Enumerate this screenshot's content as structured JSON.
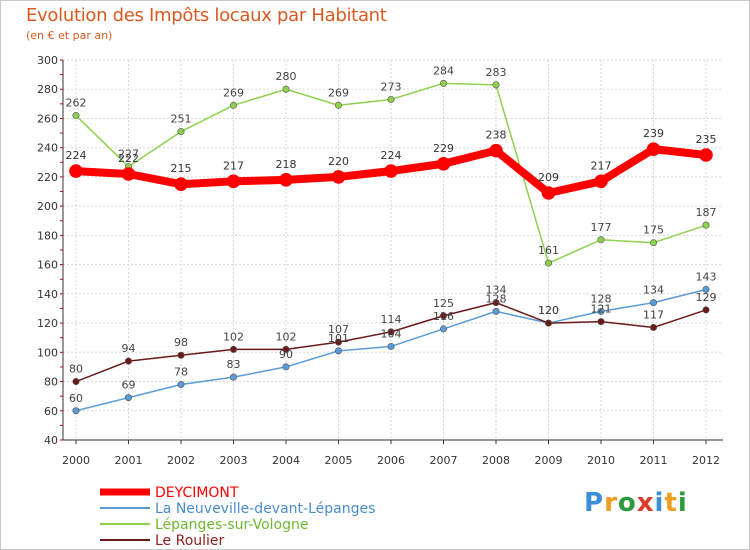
{
  "title": "Evolution des Impôts locaux par Habitant",
  "subtitle": "(en € et par an)",
  "logo": {
    "text": "Proxiti",
    "colors": [
      "#3a8fd6",
      "#f0a020",
      "#2a9a3a",
      "#e03a2a",
      "#3a8fd6",
      "#f0a020",
      "#2a9a3a"
    ]
  },
  "chart_data": {
    "type": "line",
    "x": [
      "2000",
      "2001",
      "2002",
      "2003",
      "2004",
      "2005",
      "2006",
      "2007",
      "2008",
      "2009",
      "2010",
      "2011",
      "2012"
    ],
    "ylim": [
      40,
      300
    ],
    "yticks": [
      40,
      60,
      80,
      100,
      120,
      140,
      160,
      180,
      200,
      220,
      240,
      260,
      280,
      300
    ],
    "grid": true,
    "legend_position": "bottom-left",
    "series": [
      {
        "name": "DEYCIMONT",
        "color": "#ff0000",
        "width": 8,
        "values": [
          224,
          222,
          215,
          217,
          218,
          220,
          224,
          229,
          238,
          209,
          217,
          239,
          235
        ]
      },
      {
        "name": "La Neuveville-devant-Lépanges",
        "color": "#5b9bd5",
        "width": 1.5,
        "values": [
          60,
          69,
          78,
          83,
          90,
          101,
          104,
          116,
          128,
          120,
          128,
          134,
          143
        ]
      },
      {
        "name": "Lépanges-sur-Vologne",
        "color": "#8fd14f",
        "width": 1.5,
        "values": [
          262,
          227,
          251,
          269,
          280,
          269,
          273,
          284,
          283,
          161,
          177,
          175,
          187
        ]
      },
      {
        "name": "Le Roulier",
        "color": "#6b1a1a",
        "width": 1.5,
        "values": [
          80,
          94,
          98,
          102,
          102,
          107,
          114,
          125,
          134,
          120,
          121,
          117,
          129
        ]
      }
    ]
  }
}
